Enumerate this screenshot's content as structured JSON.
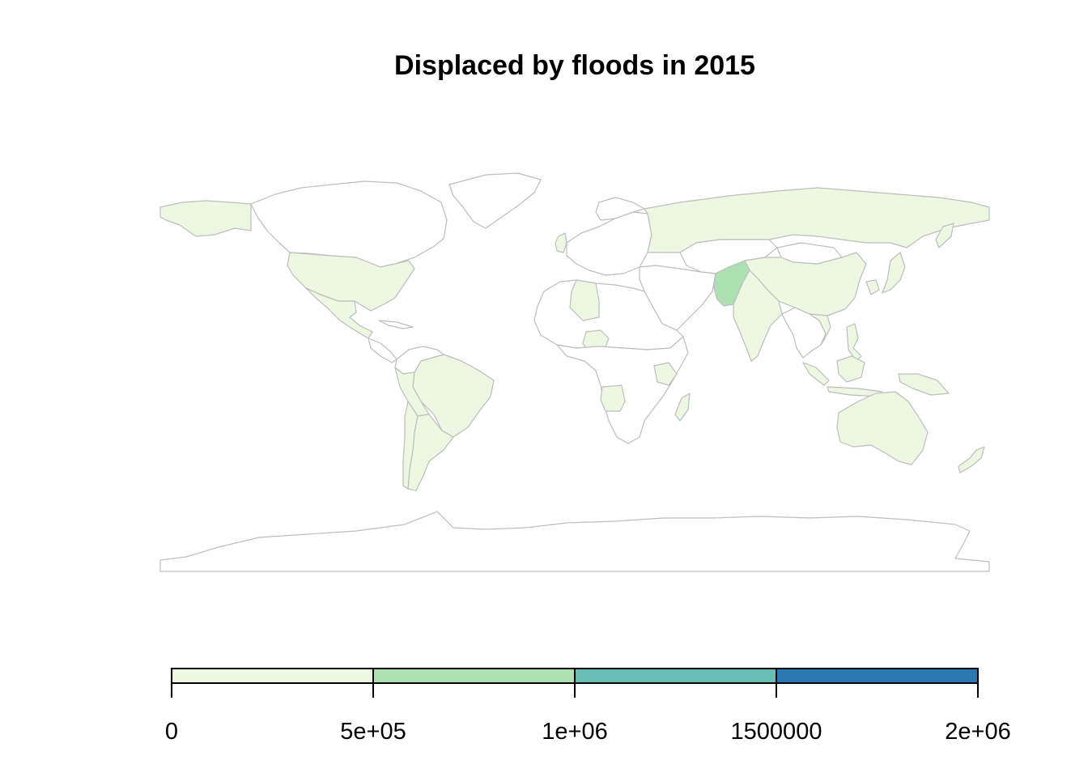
{
  "title": "Displaced by floods in 2015",
  "colors": {
    "no_data": "#ffffff",
    "outline": "#bdbdbd",
    "bins": [
      "#edf8e3",
      "#ade0b3",
      "#68bdb4",
      "#2a77b1"
    ]
  },
  "legend": {
    "min": 0,
    "max": 2000000,
    "bins": [
      {
        "from": 0,
        "to": 500000,
        "color": "#edf8e3"
      },
      {
        "from": 500000,
        "to": 1000000,
        "color": "#ade0b3"
      },
      {
        "from": 1000000,
        "to": 1500000,
        "color": "#68bdb4"
      },
      {
        "from": 1500000,
        "to": 2000000,
        "color": "#2a77b1"
      }
    ],
    "ticks": [
      {
        "value": 0,
        "label": "0"
      },
      {
        "value": 500000,
        "label": "5e+05"
      },
      {
        "value": 1000000,
        "label": "1e+06"
      },
      {
        "value": 1500000,
        "label": "1500000"
      },
      {
        "value": 2000000,
        "label": "2e+06"
      }
    ]
  },
  "highlighted_regions": [
    {
      "name": "Pakistan",
      "bin": 1
    },
    {
      "name": "United States",
      "bin": 0
    },
    {
      "name": "Russia",
      "bin": 0
    },
    {
      "name": "China",
      "bin": 0
    },
    {
      "name": "India",
      "bin": 0
    },
    {
      "name": "Brazil",
      "bin": 0
    },
    {
      "name": "Australia",
      "bin": 0
    },
    {
      "name": "Mexico",
      "bin": 0
    },
    {
      "name": "Argentina",
      "bin": 0
    },
    {
      "name": "United Kingdom",
      "bin": 0
    },
    {
      "name": "Japan",
      "bin": 0
    },
    {
      "name": "Indonesia",
      "bin": 0
    },
    {
      "name": "Philippines",
      "bin": 0
    },
    {
      "name": "Angola",
      "bin": 0
    },
    {
      "name": "Kenya",
      "bin": 0
    },
    {
      "name": "Nigeria",
      "bin": 0
    },
    {
      "name": "Algeria",
      "bin": 0
    },
    {
      "name": "New Zealand",
      "bin": 0
    }
  ]
}
